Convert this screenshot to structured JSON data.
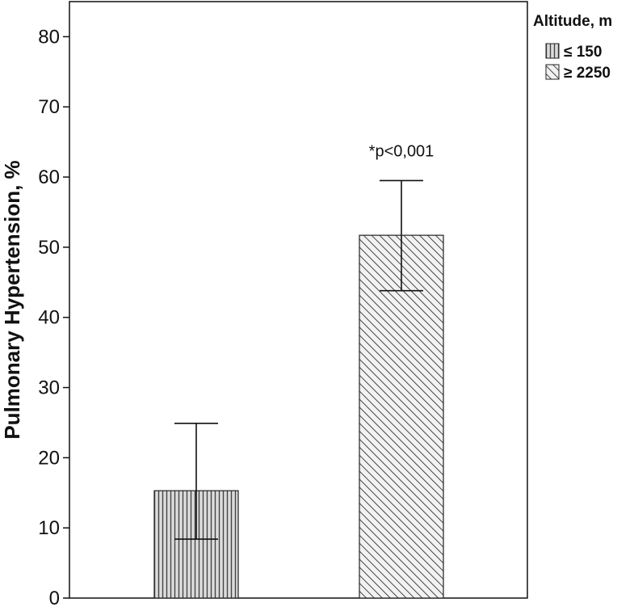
{
  "chart_data": {
    "type": "bar",
    "categories": [
      "≤ 150",
      "≥ 2250"
    ],
    "series": [
      {
        "values": [
          15.3,
          51.7
        ],
        "error_low": [
          8.4,
          43.8
        ],
        "error_high": [
          24.9,
          59.5
        ]
      }
    ],
    "title": "",
    "xlabel": "",
    "ylabel": "Pulmonary Hypertension, %",
    "ylim": [
      0,
      85
    ],
    "yticks": [
      0,
      10,
      20,
      30,
      40,
      50,
      60,
      70,
      80
    ],
    "grid": false,
    "legend": {
      "title": "Altitude, m",
      "placement": "right-top",
      "entries": [
        {
          "label": "≤ 150",
          "pattern": "vertical-stripes"
        },
        {
          "label": "≥ 2250",
          "pattern": "diagonal-hatch"
        }
      ]
    },
    "annotations": [
      {
        "text": "*p<0,001",
        "category": "≥ 2250"
      }
    ]
  }
}
